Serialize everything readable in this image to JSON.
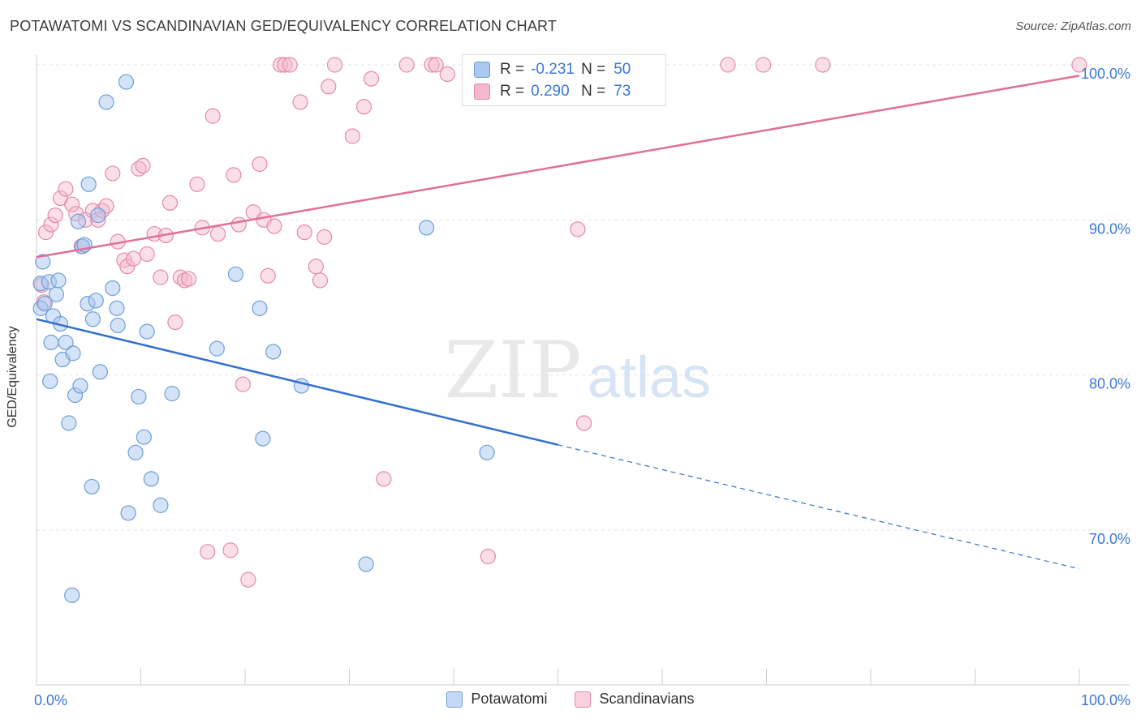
{
  "header": {
    "title": "POTAWATOMI VS SCANDINAVIAN GED/EQUIVALENCY CORRELATION CHART",
    "source": "Source: ZipAtlas.com"
  },
  "watermark": {
    "zip": "ZIP",
    "atlas": "atlas"
  },
  "legend": {
    "rows": [
      {
        "r_label": "R =",
        "r_value": "-0.231",
        "n_label": "N =",
        "n_value": "50"
      },
      {
        "r_label": "R =",
        "r_value": "0.290",
        "n_label": "N =",
        "n_value": "73"
      }
    ],
    "bottom": [
      "Potawatomi",
      "Scandinavians"
    ]
  },
  "chart_data": {
    "type": "scatter",
    "title": "POTAWATOMI VS SCANDINAVIAN GED/EQUIVALENCY CORRELATION CHART",
    "xlabel": "",
    "ylabel": "GED/Equivalency",
    "xlim": [
      0,
      100
    ],
    "ylim": [
      60,
      100
    ],
    "x_tick_labels": [
      "0.0%",
      "100.0%"
    ],
    "y_ticks": [
      70,
      80,
      90,
      100
    ],
    "y_tick_labels": [
      "70.0%",
      "80.0%",
      "90.0%",
      "100.0%"
    ],
    "grid": true,
    "legend_position": "top-center",
    "colors": {
      "potawatomi_fill": "#a9c8f0",
      "potawatomi_stroke": "#6e9fd8",
      "potawatomi_line": "#3371cc",
      "scandinavian_fill": "#f5b8cb",
      "scandinavian_stroke": "#e58aa8",
      "scandinavian_line": "#e0709a",
      "tick_label": "#3b78d8"
    },
    "series": [
      {
        "name": "Potawatomi",
        "r": -0.231,
        "n": 50,
        "trend": {
          "x": [
            0,
            50
          ],
          "y": [
            83.6,
            75.5
          ],
          "dashed_x": [
            50,
            100
          ],
          "dashed_y": [
            75.5,
            67.5
          ]
        },
        "points": [
          [
            0.4,
            85.9
          ],
          [
            0.4,
            84.3
          ],
          [
            0.6,
            87.3
          ],
          [
            0.8,
            84.6
          ],
          [
            1.2,
            86.0
          ],
          [
            1.3,
            79.6
          ],
          [
            1.4,
            82.1
          ],
          [
            1.6,
            83.8
          ],
          [
            1.9,
            85.2
          ],
          [
            2.1,
            86.1
          ],
          [
            2.3,
            83.3
          ],
          [
            2.5,
            81.0
          ],
          [
            2.8,
            82.1
          ],
          [
            3.1,
            76.9
          ],
          [
            3.4,
            65.8
          ],
          [
            3.5,
            81.4
          ],
          [
            3.7,
            78.7
          ],
          [
            4.0,
            89.9
          ],
          [
            4.2,
            79.3
          ],
          [
            4.4,
            88.3
          ],
          [
            4.6,
            88.4
          ],
          [
            4.9,
            84.6
          ],
          [
            5.0,
            92.3
          ],
          [
            5.3,
            72.8
          ],
          [
            5.4,
            83.6
          ],
          [
            5.7,
            84.8
          ],
          [
            5.9,
            90.3
          ],
          [
            6.1,
            80.2
          ],
          [
            6.7,
            97.6
          ],
          [
            7.3,
            85.6
          ],
          [
            7.7,
            84.3
          ],
          [
            7.8,
            83.2
          ],
          [
            8.6,
            98.9
          ],
          [
            8.8,
            71.1
          ],
          [
            9.5,
            75.0
          ],
          [
            9.8,
            78.6
          ],
          [
            10.3,
            76.0
          ],
          [
            10.6,
            82.8
          ],
          [
            11.0,
            73.3
          ],
          [
            11.9,
            71.6
          ],
          [
            13.0,
            78.8
          ],
          [
            17.3,
            81.7
          ],
          [
            19.1,
            86.5
          ],
          [
            21.4,
            84.3
          ],
          [
            21.7,
            75.9
          ],
          [
            22.7,
            81.5
          ],
          [
            25.4,
            79.3
          ],
          [
            31.6,
            67.8
          ],
          [
            37.4,
            89.5
          ],
          [
            43.2,
            75.0
          ]
        ]
      },
      {
        "name": "Scandinavians",
        "r": 0.29,
        "n": 73,
        "trend": {
          "x": [
            0,
            100
          ],
          "y": [
            87.6,
            99.3
          ]
        },
        "points": [
          [
            0.5,
            85.8
          ],
          [
            0.7,
            84.7
          ],
          [
            0.9,
            89.2
          ],
          [
            1.4,
            89.7
          ],
          [
            1.8,
            90.3
          ],
          [
            2.3,
            91.4
          ],
          [
            2.8,
            92.0
          ],
          [
            3.4,
            91.0
          ],
          [
            3.8,
            90.4
          ],
          [
            4.3,
            88.3
          ],
          [
            4.7,
            90.0
          ],
          [
            5.4,
            90.6
          ],
          [
            5.9,
            90.0
          ],
          [
            6.3,
            90.6
          ],
          [
            6.7,
            90.9
          ],
          [
            7.3,
            93.0
          ],
          [
            7.8,
            88.6
          ],
          [
            8.4,
            87.4
          ],
          [
            8.7,
            87.0
          ],
          [
            9.3,
            87.5
          ],
          [
            9.8,
            93.3
          ],
          [
            10.2,
            93.5
          ],
          [
            10.6,
            87.8
          ],
          [
            11.3,
            89.1
          ],
          [
            11.9,
            86.3
          ],
          [
            12.4,
            89.0
          ],
          [
            12.8,
            91.1
          ],
          [
            13.3,
            83.4
          ],
          [
            13.8,
            86.3
          ],
          [
            14.2,
            86.1
          ],
          [
            14.6,
            86.2
          ],
          [
            15.4,
            92.3
          ],
          [
            15.9,
            89.5
          ],
          [
            16.4,
            68.6
          ],
          [
            16.9,
            96.7
          ],
          [
            17.4,
            89.1
          ],
          [
            18.6,
            68.7
          ],
          [
            18.9,
            92.9
          ],
          [
            19.4,
            89.7
          ],
          [
            19.8,
            79.4
          ],
          [
            20.3,
            66.8
          ],
          [
            20.8,
            90.5
          ],
          [
            21.4,
            93.6
          ],
          [
            21.8,
            90.0
          ],
          [
            22.2,
            86.4
          ],
          [
            22.8,
            89.6
          ],
          [
            23.4,
            100.0
          ],
          [
            23.8,
            100.0
          ],
          [
            24.3,
            100.0
          ],
          [
            25.3,
            97.6
          ],
          [
            25.7,
            89.2
          ],
          [
            26.8,
            87.0
          ],
          [
            27.2,
            86.1
          ],
          [
            27.6,
            88.9
          ],
          [
            28.0,
            98.6
          ],
          [
            28.6,
            100.0
          ],
          [
            30.3,
            95.4
          ],
          [
            31.4,
            97.3
          ],
          [
            32.1,
            99.1
          ],
          [
            33.3,
            73.3
          ],
          [
            35.5,
            100.0
          ],
          [
            37.9,
            100.0
          ],
          [
            38.3,
            100.0
          ],
          [
            39.4,
            99.4
          ],
          [
            43.3,
            68.3
          ],
          [
            48.4,
            100.0
          ],
          [
            51.6,
            100.0
          ],
          [
            51.9,
            89.4
          ],
          [
            52.5,
            76.9
          ],
          [
            66.3,
            100.0
          ],
          [
            69.7,
            100.0
          ],
          [
            75.4,
            100.0
          ],
          [
            100.0,
            100.0
          ]
        ]
      }
    ]
  }
}
